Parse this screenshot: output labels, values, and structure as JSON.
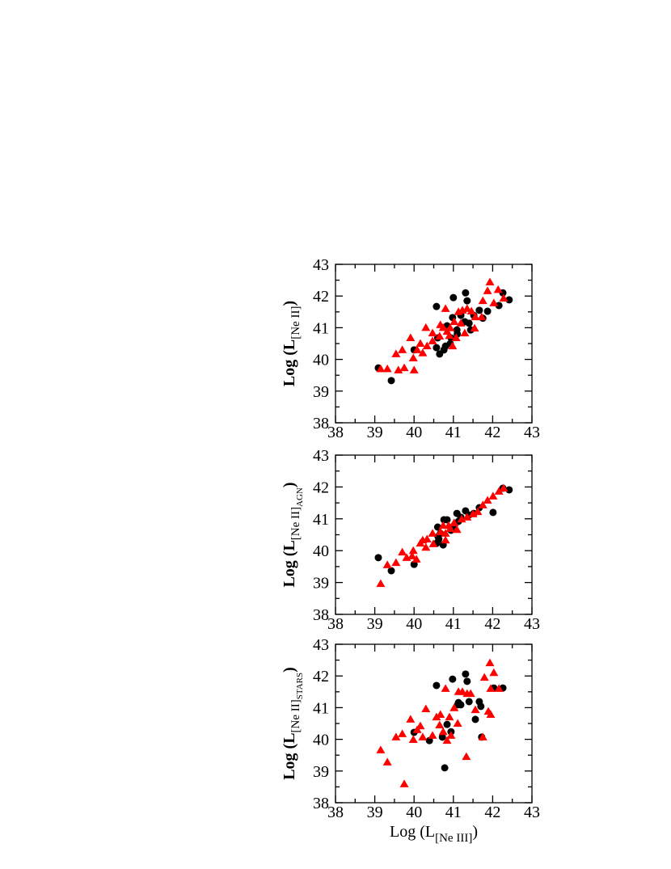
{
  "chart_data": [
    {
      "type": "scatter",
      "xlim": [
        38,
        43
      ],
      "ylim": [
        38,
        43
      ],
      "xticks": [
        38,
        39,
        40,
        41,
        42,
        43
      ],
      "yticks": [
        38,
        39,
        40,
        41,
        42,
        43
      ],
      "xminorticks": [
        38.5,
        39.5,
        40.5,
        41.5,
        42.5
      ],
      "yminorticks": [
        38.5,
        39.5,
        40.5,
        41.5,
        42.5
      ],
      "ylabel": {
        "main": "Log (L",
        "sub": "[Ne II]",
        "end": ")"
      },
      "series": [
        {
          "color": "#000000",
          "marker": "circle",
          "x": [
            39.09,
            39.42,
            40.0,
            40.57,
            40.57,
            40.65,
            40.6,
            40.84,
            40.94,
            40.98,
            41.0,
            41.09,
            41.19,
            41.31,
            41.35,
            41.29,
            41.52,
            41.66,
            41.87,
            42.16,
            42.26,
            42.42,
            40.92,
            40.8,
            41.1,
            41.4,
            41.75,
            40.76,
            41.44
          ],
          "y": [
            39.73,
            39.33,
            40.3,
            41.67,
            40.37,
            40.17,
            40.68,
            41.06,
            40.68,
            41.32,
            41.95,
            40.93,
            41.39,
            42.1,
            41.85,
            41.19,
            41.39,
            41.55,
            41.52,
            41.7,
            42.1,
            41.88,
            40.5,
            40.42,
            40.8,
            41.14,
            41.3,
            40.3,
            40.93
          ]
        },
        {
          "color": "#ff0000",
          "marker": "triangle",
          "x": [
            39.15,
            39.32,
            39.54,
            39.7,
            39.75,
            39.6,
            39.98,
            40.0,
            39.91,
            40.08,
            40.16,
            40.22,
            40.33,
            40.47,
            40.3,
            40.67,
            40.84,
            40.8,
            40.92,
            41.02,
            41.07,
            41.13,
            41.23,
            41.35,
            41.46,
            41.29,
            41.56,
            41.72,
            41.75,
            41.87,
            41.93,
            42.03,
            42.14,
            42.28,
            40.47,
            40.98,
            40.65,
            40.74,
            40.9,
            41.54,
            41.19
          ],
          "y": [
            39.7,
            39.7,
            40.17,
            40.3,
            39.73,
            39.66,
            40.04,
            39.66,
            40.68,
            40.3,
            40.5,
            40.2,
            40.42,
            40.58,
            41.0,
            41.09,
            40.88,
            41.6,
            40.99,
            41.19,
            40.68,
            41.5,
            41.55,
            41.6,
            41.52,
            40.83,
            41.34,
            41.34,
            41.85,
            42.16,
            42.44,
            41.78,
            42.2,
            41.93,
            40.83,
            40.42,
            40.73,
            41.0,
            40.75,
            40.98,
            41.14
          ]
        }
      ]
    },
    {
      "type": "scatter",
      "xlim": [
        38,
        43
      ],
      "ylim": [
        38,
        43
      ],
      "xticks": [
        38,
        39,
        40,
        41,
        42,
        43
      ],
      "yticks": [
        38,
        39,
        40,
        41,
        42,
        43
      ],
      "xminorticks": [
        38.5,
        39.5,
        40.5,
        41.5,
        42.5
      ],
      "yminorticks": [
        38.5,
        39.5,
        40.5,
        41.5,
        42.5
      ],
      "ylabel": {
        "main": "Log (L",
        "sub": "[Ne II]",
        "sub2": "AGN",
        "end": ")"
      },
      "series": [
        {
          "color": "#000000",
          "marker": "circle",
          "x": [
            39.09,
            39.42,
            40.0,
            40.57,
            40.61,
            40.6,
            40.76,
            40.84,
            40.94,
            41.02,
            41.09,
            41.19,
            41.31,
            41.4,
            41.52,
            41.66,
            42.01,
            42.26,
            42.42,
            40.67,
            40.63,
            41.13,
            40.74
          ],
          "y": [
            39.78,
            39.37,
            39.57,
            40.23,
            40.44,
            40.74,
            40.97,
            40.97,
            40.64,
            40.79,
            41.17,
            41.05,
            41.25,
            41.12,
            41.17,
            41.35,
            41.2,
            41.96,
            41.91,
            40.54,
            40.36,
            40.92,
            40.18
          ]
        },
        {
          "color": "#ff0000",
          "marker": "triangle",
          "x": [
            39.15,
            39.32,
            39.54,
            39.7,
            39.81,
            39.98,
            39.95,
            40.16,
            40.22,
            40.33,
            40.3,
            40.47,
            40.67,
            40.8,
            40.8,
            40.92,
            41.02,
            41.09,
            41.21,
            41.35,
            41.5,
            41.62,
            41.75,
            41.87,
            42.01,
            42.16,
            42.28,
            40.49,
            40.88,
            40.74,
            40.06
          ],
          "y": [
            38.96,
            39.55,
            39.62,
            39.95,
            39.78,
            40.0,
            39.83,
            40.23,
            40.33,
            40.36,
            40.1,
            40.54,
            40.59,
            40.54,
            40.33,
            40.69,
            40.87,
            40.66,
            40.99,
            41.05,
            41.15,
            41.22,
            41.43,
            41.58,
            41.71,
            41.86,
            41.96,
            40.21,
            40.79,
            40.79,
            39.73
          ]
        }
      ]
    },
    {
      "type": "scatter",
      "xlim": [
        38,
        43
      ],
      "ylim": [
        38,
        43
      ],
      "xticks": [
        38,
        39,
        40,
        41,
        42,
        43
      ],
      "yticks": [
        38,
        39,
        40,
        41,
        42,
        43
      ],
      "xminorticks": [
        38.5,
        39.5,
        40.5,
        41.5,
        42.5
      ],
      "yminorticks": [
        38.5,
        39.5,
        40.5,
        41.5,
        42.5
      ],
      "ylabel": {
        "main": "Log (L",
        "sub": "[Ne II]",
        "sub2": "STARS",
        "end": ")"
      },
      "xlabel": {
        "main": "Log (L",
        "sub": "[Ne III]",
        "end": ")"
      },
      "series": [
        {
          "color": "#000000",
          "marker": "circle",
          "x": [
            40.0,
            40.39,
            40.57,
            40.72,
            40.78,
            40.84,
            40.94,
            40.98,
            41.13,
            41.19,
            41.31,
            41.35,
            41.4,
            41.56,
            41.66,
            41.7,
            41.72,
            42.03,
            42.26,
            41.11
          ],
          "y": [
            40.22,
            39.96,
            41.7,
            40.07,
            39.1,
            40.47,
            40.24,
            41.9,
            41.16,
            41.09,
            42.06,
            41.83,
            41.19,
            40.63,
            41.19,
            41.04,
            40.07,
            41.62,
            41.62,
            41.09
          ]
        },
        {
          "color": "#ff0000",
          "marker": "triangle",
          "x": [
            39.15,
            39.32,
            39.54,
            39.7,
            39.75,
            39.91,
            39.98,
            40.08,
            40.16,
            40.22,
            40.3,
            40.47,
            40.57,
            40.67,
            40.74,
            40.8,
            40.84,
            40.9,
            40.94,
            41.02,
            41.11,
            41.13,
            41.23,
            41.33,
            41.35,
            41.44,
            41.56,
            41.75,
            41.79,
            41.89,
            41.93,
            41.95,
            42.03,
            41.95,
            42.16,
            40.65
          ],
          "y": [
            39.66,
            39.28,
            40.07,
            40.17,
            38.59,
            40.63,
            39.99,
            40.3,
            40.42,
            40.07,
            40.96,
            40.12,
            40.7,
            40.78,
            40.24,
            41.6,
            39.96,
            40.7,
            40.12,
            40.99,
            40.5,
            41.5,
            41.5,
            39.45,
            41.44,
            41.44,
            40.93,
            40.07,
            41.95,
            40.88,
            42.41,
            41.6,
            42.1,
            40.78,
            41.6,
            40.45
          ]
        }
      ]
    }
  ]
}
